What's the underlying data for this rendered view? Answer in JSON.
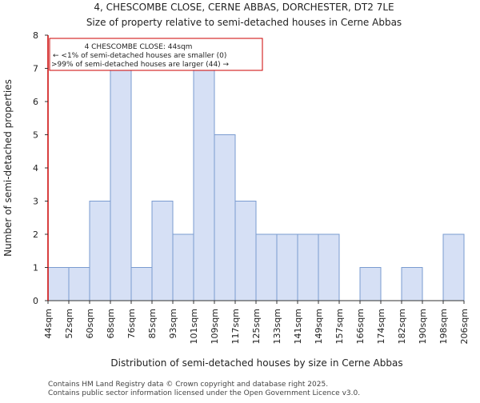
{
  "chart_data": {
    "type": "bar",
    "title": "4, CHESCOMBE CLOSE, CERNE ABBAS, DORCHESTER, DT2 7LE",
    "subtitle": "Size of property relative to semi-detached houses in Cerne Abbas",
    "xlabel": "Distribution of semi-detached houses by size in Cerne Abbas",
    "ylabel": "Number of semi-detached properties",
    "tick_labels": [
      "44sqm",
      "52sqm",
      "60sqm",
      "68sqm",
      "76sqm",
      "85sqm",
      "93sqm",
      "101sqm",
      "109sqm",
      "117sqm",
      "125sqm",
      "133sqm",
      "141sqm",
      "149sqm",
      "157sqm",
      "166sqm",
      "174sqm",
      "182sqm",
      "190sqm",
      "198sqm",
      "206sqm"
    ],
    "values": [
      1,
      1,
      3,
      7,
      1,
      3,
      2,
      7,
      5,
      3,
      2,
      2,
      2,
      2,
      0,
      1,
      0,
      1,
      0,
      2
    ],
    "ylim": [
      0,
      8
    ],
    "yticks": [
      0,
      1,
      2,
      3,
      4,
      5,
      6,
      7,
      8
    ],
    "grid": false,
    "bar_color": "#d6e0f5",
    "bar_edge_color": "#7a9bd0",
    "marker": {
      "value_label": "44sqm",
      "color": "#cc0000"
    },
    "annotation": {
      "lines": [
        "4 CHESCOMBE CLOSE: 44sqm",
        "← <1% of semi-detached houses are smaller (0)",
        ">99% of semi-detached houses are larger (44) →"
      ],
      "border_color": "#cc0000"
    }
  },
  "footer": {
    "line1": "Contains HM Land Registry data © Crown copyright and database right 2025.",
    "line2": "Contains public sector information licensed under the Open Government Licence v3.0."
  }
}
